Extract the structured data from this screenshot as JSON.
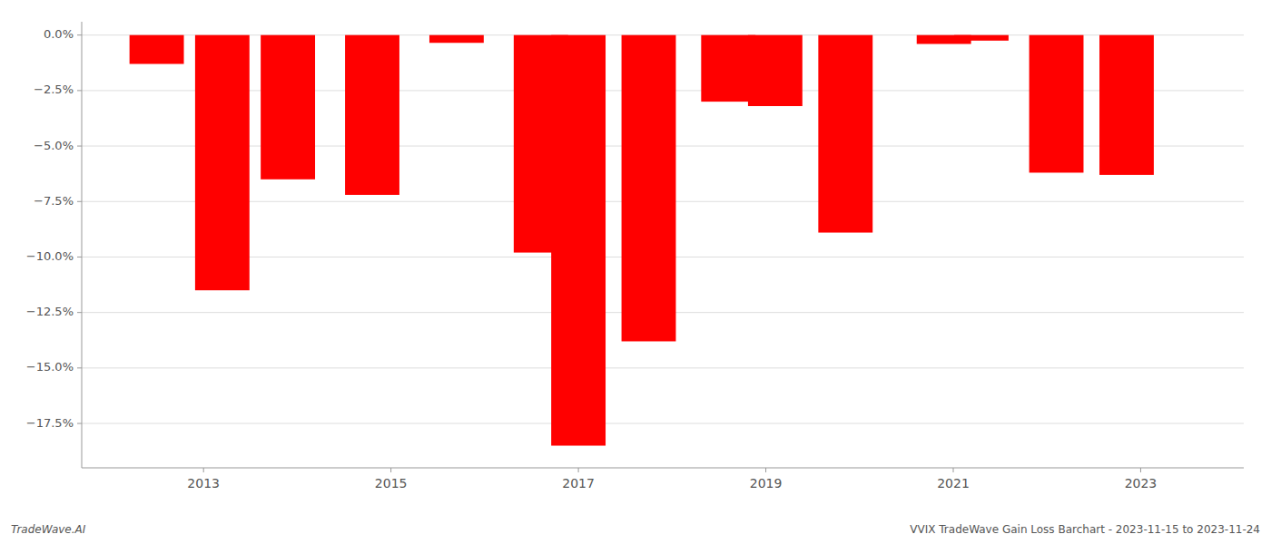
{
  "chart_data": {
    "type": "bar",
    "x": [
      2012.5,
      2013.2,
      2013.9,
      2014.8,
      2015.7,
      2016.6,
      2017.0,
      2017.75,
      2018.6,
      2019.1,
      2019.85,
      2020.9,
      2021.3,
      2022.1,
      2022.85
    ],
    "values": [
      -1.3,
      -11.5,
      -6.5,
      -7.2,
      -0.35,
      -9.8,
      -18.5,
      -13.8,
      -3.0,
      -3.2,
      -8.9,
      -0.4,
      -0.25,
      -6.2,
      -6.3
    ],
    "color": "#ff0000",
    "xlim": [
      2011.7,
      2024.1
    ],
    "xticks": [
      2013,
      2015,
      2017,
      2019,
      2021,
      2023
    ],
    "ylim": [
      -19.5,
      0.6
    ],
    "yticks": [
      {
        "value": 0.0,
        "label": "0.0%"
      },
      {
        "value": -2.5,
        "label": "−2.5%"
      },
      {
        "value": -5.0,
        "label": "−5.0%"
      },
      {
        "value": -7.5,
        "label": "−7.5%"
      },
      {
        "value": -10.0,
        "label": "−10.0%"
      },
      {
        "value": -12.5,
        "label": "−12.5%"
      },
      {
        "value": -15.0,
        "label": "−15.0%"
      },
      {
        "value": -17.5,
        "label": "−17.5%"
      }
    ],
    "grid": true,
    "annotations": [
      "TradeWave.AI",
      "VVIX TradeWave Gain Loss Barchart - 2023-11-15 to 2023-11-24"
    ]
  }
}
